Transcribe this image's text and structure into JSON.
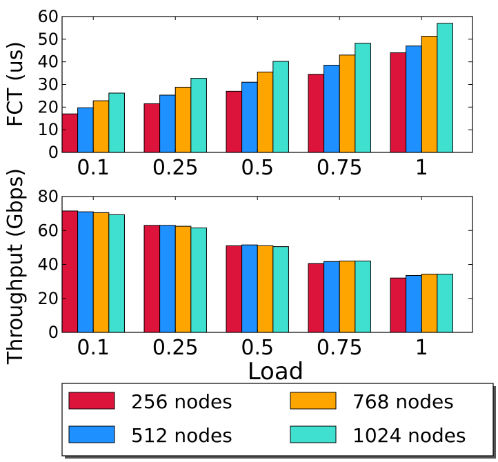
{
  "chart_data": [
    {
      "type": "bar",
      "title": "",
      "xlabel": "",
      "ylabel": "FCT (us)",
      "categories": [
        "0.1",
        "0.25",
        "0.5",
        "0.75",
        "1"
      ],
      "ylim": [
        0,
        60
      ],
      "yticks": [
        "0",
        "10",
        "20",
        "30",
        "40",
        "50",
        "60"
      ],
      "grid": false,
      "series": [
        {
          "name": "256 nodes",
          "color": "#dc143c",
          "values": [
            17,
            21.5,
            27,
            34.5,
            44
          ]
        },
        {
          "name": "512 nodes",
          "color": "#1e90ff",
          "values": [
            19.7,
            25.3,
            31,
            38.5,
            47
          ]
        },
        {
          "name": "768 nodes",
          "color": "#ffa500",
          "values": [
            22.8,
            28.8,
            35.5,
            43,
            51.3
          ]
        },
        {
          "name": "1024 nodes",
          "color": "#40e0d0",
          "values": [
            26.2,
            32.7,
            40.2,
            48.2,
            57
          ]
        }
      ]
    },
    {
      "type": "bar",
      "title": "",
      "xlabel": "Load",
      "ylabel": "Throughput (Gbps)",
      "categories": [
        "0.1",
        "0.25",
        "0.5",
        "0.75",
        "1"
      ],
      "ylim": [
        0,
        80
      ],
      "yticks": [
        "0",
        "20",
        "40",
        "60",
        "80"
      ],
      "grid": false,
      "series": [
        {
          "name": "256 nodes",
          "color": "#dc143c",
          "values": [
            71.5,
            63,
            51,
            40.5,
            32
          ]
        },
        {
          "name": "512 nodes",
          "color": "#1e90ff",
          "values": [
            71,
            63,
            51.5,
            41.7,
            33.5
          ]
        },
        {
          "name": "768 nodes",
          "color": "#ffa500",
          "values": [
            70.5,
            62.5,
            51,
            42,
            34.3
          ]
        },
        {
          "name": "1024 nodes",
          "color": "#40e0d0",
          "values": [
            69.3,
            61.5,
            50.5,
            42,
            34.3
          ]
        }
      ]
    }
  ],
  "legend": {
    "placement": "bottom",
    "columns": 2,
    "entries": [
      {
        "label": "256 nodes",
        "color": "#dc143c"
      },
      {
        "label": "512 nodes",
        "color": "#1e90ff"
      },
      {
        "label": "768 nodes",
        "color": "#ffa500"
      },
      {
        "label": "1024 nodes",
        "color": "#40e0d0"
      }
    ]
  }
}
